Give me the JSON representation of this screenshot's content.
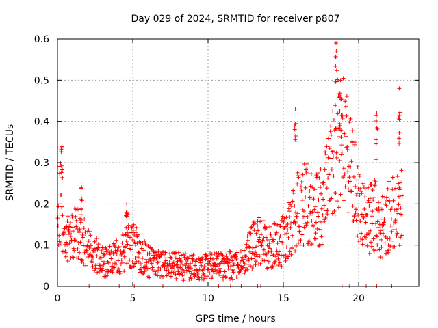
{
  "chart_data": {
    "type": "scatter",
    "title": "Day 029 of 2024, SRMTID for receiver p807",
    "xlabel": "GPS time / hours",
    "ylabel": "SRMTID / TECUs",
    "xlim": [
      0,
      24
    ],
    "ylim": [
      0,
      0.6
    ],
    "xticks": [
      0,
      5,
      10,
      15,
      20
    ],
    "yticks": [
      0,
      0.1,
      0.2,
      0.3,
      0.4,
      0.5,
      0.6
    ],
    "xtick_labels": [
      "0",
      "5",
      "10",
      "15",
      "20"
    ],
    "ytick_labels": [
      "0",
      "0.1",
      "0.2",
      "0.3",
      "0.4",
      "0.5",
      "0.6"
    ],
    "grid": true,
    "legend": "none",
    "marker": "+",
    "color": "#ff0000",
    "trend": {
      "x": [
        0,
        0.2,
        0.5,
        1.0,
        1.5,
        2.0,
        3.0,
        4.0,
        4.5,
        5.0,
        6.0,
        7.0,
        8.0,
        9.0,
        9.5,
        10.0,
        11.0,
        12.0,
        12.5,
        13.0,
        13.5,
        14.0,
        14.5,
        15.0,
        15.5,
        16.0,
        16.5,
        17.0,
        17.5,
        18.0,
        18.3,
        18.6,
        19.0,
        19.5,
        20.0,
        20.5,
        21.0,
        21.5,
        22.0,
        22.5,
        22.9
      ],
      "y": [
        0.12,
        0.22,
        0.11,
        0.12,
        0.13,
        0.09,
        0.06,
        0.07,
        0.09,
        0.1,
        0.06,
        0.05,
        0.05,
        0.045,
        0.04,
        0.05,
        0.05,
        0.05,
        0.07,
        0.1,
        0.11,
        0.09,
        0.1,
        0.11,
        0.14,
        0.19,
        0.2,
        0.18,
        0.2,
        0.24,
        0.3,
        0.36,
        0.35,
        0.27,
        0.2,
        0.15,
        0.18,
        0.14,
        0.17,
        0.18,
        0.2
      ]
    },
    "peaks": [
      {
        "x": 0.3,
        "y": 0.34
      },
      {
        "x": 1.6,
        "y": 0.24
      },
      {
        "x": 4.6,
        "y": 0.2
      },
      {
        "x": 15.8,
        "y": 0.43
      },
      {
        "x": 18.5,
        "y": 0.59
      },
      {
        "x": 18.8,
        "y": 0.5
      },
      {
        "x": 21.2,
        "y": 0.42
      },
      {
        "x": 22.7,
        "y": 0.48
      }
    ],
    "zero_points": [
      2.1,
      4.1,
      5.1,
      7.0,
      10.7,
      11.5,
      12.2,
      13.3,
      13.5,
      15.0,
      18.9,
      19.3,
      19.4,
      20.5,
      21.2,
      22.2
    ]
  }
}
